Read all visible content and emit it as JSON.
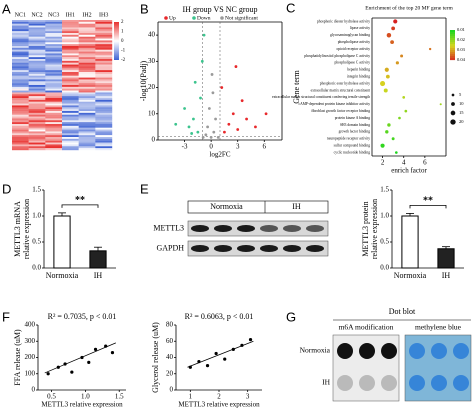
{
  "chart_data": [
    {
      "type": "heatmap",
      "panel": "A",
      "columns": [
        "NC1",
        "NC2",
        "NC3",
        "IH1",
        "IH2",
        "IH3"
      ],
      "colorbar_ticks": [
        2,
        1,
        0,
        -1,
        -2
      ],
      "colors": [
        "#e8312f",
        "#ffffff",
        "#3f63d3"
      ]
    },
    {
      "type": "scatter",
      "panel": "B",
      "title": "IH group VS NC group",
      "xlabel": "log2FC",
      "ylabel": "-log10(Padj)",
      "xlim": [
        -6,
        8
      ],
      "ylim": [
        0,
        45
      ],
      "xticks": [
        -3,
        0,
        3,
        6
      ],
      "yticks": [
        0,
        10,
        20,
        30,
        40
      ],
      "series": [
        {
          "name": "Up",
          "color": "#e8282b",
          "x": [
            1.5,
            2,
            2.5,
            3,
            3.5,
            4,
            1.2,
            5,
            2.8,
            6.2
          ],
          "values": [
            3,
            6,
            10,
            4,
            15,
            8,
            20,
            5,
            28,
            10
          ]
        },
        {
          "name": "Down",
          "color": "#3cc48e",
          "x": [
            -1.5,
            -2,
            -1.2,
            -2.5,
            -1,
            -3,
            -1.8,
            -0.8,
            -2.2,
            -4
          ],
          "values": [
            3,
            8,
            16,
            5,
            30,
            12,
            22,
            40,
            2.5,
            6
          ]
        },
        {
          "name": "Not significant",
          "color": "#9a9a9a",
          "x": [
            0,
            0.3,
            -0.4,
            0.5,
            -0.2,
            0.2,
            -0.6,
            0.8,
            -0.9,
            0.1
          ],
          "values": [
            1,
            3,
            5,
            8,
            12,
            18,
            2,
            1,
            1,
            25
          ]
        }
      ]
    },
    {
      "type": "dot",
      "panel": "C",
      "title": "Enrichment of the top 20 MF gene term",
      "xlabel": "enrich factor",
      "ylabel": "Gene term",
      "xlim": [
        1,
        8
      ],
      "xticks": [
        2,
        4,
        6
      ],
      "categories": [
        "phosphoric diester hydrolase activity",
        "lipase activity",
        "glycosaminoglycan binding",
        "phospholipase activity",
        "opioid receptor activity",
        "phosphatidylinositol phospholipase C activity",
        "phospholipase C activity",
        "heparin binding",
        "integrin binding",
        "phosphoric ester hydrolase activity",
        "extracellular matrix structural constituent",
        "extracellular matrix structural constituent conferring tensile strength",
        "cAMP-dependent protein kinase inhibitor activity",
        "fibroblast growth factor receptor binding",
        "protein kinase A binding",
        "SH3 domain binding",
        "growth factor binding",
        "neuropeptide receptor activity",
        "sulfur compound binding",
        "cyclic nucleotide binding"
      ],
      "values": [
        3.2,
        3.0,
        2.6,
        2.9,
        6.5,
        3.8,
        3.4,
        2.4,
        2.5,
        2.0,
        2.3,
        4.0,
        7.5,
        4.2,
        3.6,
        2.6,
        2.4,
        3.0,
        2.0,
        3.3
      ],
      "sizes": [
        12,
        10,
        14,
        10,
        4,
        6,
        7,
        12,
        10,
        18,
        11,
        5,
        3,
        5,
        5,
        8,
        8,
        6,
        12,
        5
      ],
      "pvalues": [
        0.001,
        0.004,
        0.006,
        0.008,
        0.01,
        0.012,
        0.014,
        0.016,
        0.018,
        0.02,
        0.022,
        0.024,
        0.026,
        0.028,
        0.03,
        0.032,
        0.034,
        0.036,
        0.038,
        0.04
      ],
      "colorbar_ticks": [
        0.04,
        0.03,
        0.02,
        0.01
      ],
      "size_legend": [
        5,
        10,
        15,
        20
      ]
    },
    {
      "type": "bar",
      "panel": "D",
      "ylabel": [
        "METTL3 mRNA",
        "relative expression"
      ],
      "categories": [
        "Normoxia",
        "IH"
      ],
      "values": [
        1.0,
        0.33
      ],
      "errors": [
        0.06,
        0.07
      ],
      "colors": [
        "#ffffff",
        "#222222"
      ],
      "significance": "**",
      "ylim": [
        0,
        1.5
      ],
      "yticks": [
        {
          "value": 0,
          "label": "0.0"
        },
        {
          "value": 0.5,
          "label": "0.5"
        },
        {
          "value": 1,
          "label": "1.0"
        },
        {
          "value": 1.5,
          "label": "1.5"
        }
      ]
    },
    {
      "type": "blot",
      "panel": "E",
      "groups": [
        "Normoxia",
        "IH"
      ],
      "rows": [
        "METTL3",
        "GAPDH"
      ]
    },
    {
      "type": "bar",
      "ylabel": [
        "METTL3 protein",
        "relative expression"
      ],
      "categories": [
        "Normoxia",
        "IH"
      ],
      "values": [
        1.0,
        0.37
      ],
      "errors": [
        0.05,
        0.04
      ],
      "colors": [
        "#ffffff",
        "#222222"
      ],
      "significance": "**",
      "ylim": [
        0,
        1.5
      ],
      "yticks": [
        {
          "value": 0,
          "label": "0.0"
        },
        {
          "value": 0.5,
          "label": "0.5"
        },
        {
          "value": 1,
          "label": "1.0"
        },
        {
          "value": 1.5,
          "label": "1.5"
        }
      ]
    },
    {
      "type": "regression",
      "panel": "F",
      "title": "R² = 0.7035, p < 0.01",
      "xlabel": "METTL3 relative expression",
      "ylabel": "FFA release (uM)",
      "xlim": [
        0.3,
        1.6
      ],
      "xticks": [
        0.5,
        {
          "value": 1,
          "label": "1.0"
        },
        1.5
      ],
      "ylim": [
        0,
        400
      ],
      "yticks": [
        0,
        100,
        200,
        300,
        400
      ],
      "x": [
        0.45,
        0.6,
        0.7,
        0.8,
        0.95,
        1.05,
        1.15,
        1.3,
        1.4
      ],
      "values": [
        100,
        140,
        160,
        110,
        200,
        170,
        250,
        270,
        230
      ],
      "fit": {
        "x": [
          0.4,
          1.45
        ],
        "values": [
          105,
          290
        ]
      }
    },
    {
      "type": "regression",
      "title": "R² = 0.6063, p < 0.01",
      "xlabel": "METTL3 relative expression",
      "ylabel": "Glycerol release (uM)",
      "xlim": [
        0.5,
        3.5
      ],
      "xticks": [
        1,
        2,
        3
      ],
      "ylim": [
        0,
        80
      ],
      "yticks": [
        0,
        20,
        40,
        60,
        80
      ],
      "x": [
        1.0,
        1.3,
        1.6,
        1.9,
        2.2,
        2.5,
        2.8,
        3.1
      ],
      "values": [
        28,
        35,
        30,
        45,
        38,
        50,
        55,
        62
      ],
      "fit": {
        "x": [
          0.9,
          3.2
        ],
        "values": [
          28,
          60
        ]
      }
    },
    {
      "type": "dotblot",
      "panel": "G",
      "title": "Dot blot",
      "columns": [
        "m6A modification",
        "methylene blue"
      ],
      "rows": [
        "Normoxia",
        "IH"
      ]
    }
  ]
}
